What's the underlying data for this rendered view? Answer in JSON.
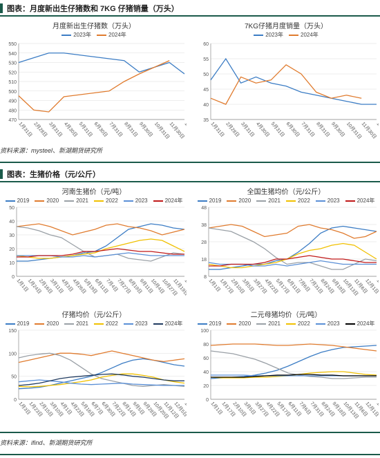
{
  "section1": {
    "title": "图表：月度新出生仔猪数和 7KG 仔猪销量（万头）",
    "source": "资料来源：mysteel、新湖期货研究所",
    "left": {
      "title": "月度新出生仔猪数（万头）",
      "legend": [
        {
          "label": "2023年",
          "color": "#3b7cc4"
        },
        {
          "label": "2024年",
          "color": "#e07b2e"
        }
      ],
      "ylim": [
        470,
        550
      ],
      "ytick_step": 10,
      "x": [
        "1月31日",
        "2月28日",
        "3月31日",
        "4月30日",
        "5月31日",
        "6月30日",
        "7月31日",
        "8月31日",
        "9月30日",
        "10月31日",
        "11月30日",
        "12月31日"
      ],
      "series": {
        "2023": [
          530,
          535,
          540,
          540,
          538,
          536,
          534,
          532,
          520,
          525,
          530,
          518
        ],
        "2024": [
          495,
          480,
          478,
          494,
          496,
          498,
          500,
          510,
          518,
          525,
          532,
          null
        ]
      }
    },
    "right": {
      "title": "7KG仔猪月度销量（万头）",
      "legend": [
        {
          "label": "2023年",
          "color": "#3b7cc4"
        },
        {
          "label": "2024年",
          "color": "#e07b2e"
        }
      ],
      "ylim": [
        35,
        60
      ],
      "ytick_step": 5,
      "x": [
        "1月31日",
        "2月28日",
        "3月31日",
        "4月30日",
        "5月31日",
        "6月30日",
        "7月31日",
        "8月31日",
        "9月30日",
        "10月31日",
        "11月30日",
        "12月31日"
      ],
      "series": {
        "2023": [
          48,
          55,
          47,
          49,
          47,
          46,
          44,
          43,
          42,
          41,
          40,
          40
        ],
        "2024": [
          42,
          40,
          49,
          47,
          48,
          53,
          50,
          44,
          42,
          43,
          42,
          null
        ]
      }
    }
  },
  "section2": {
    "title": "图表：生猪价格（元/公斤）",
    "source": "资料来源：ifind、新湖期货研究所",
    "charts": [
      {
        "title": "河南生猪价（元/吨）",
        "ylim": [
          0,
          50
        ],
        "ytick_step": 10,
        "x": [
          "1月1日",
          "1月24日",
          "2月16日",
          "3月11日",
          "4月3日",
          "4月26日",
          "5月19日",
          "6月11日",
          "7月4日",
          "7月27日",
          "8月19日",
          "9月11日",
          "10月4日",
          "10月27日",
          "11月19日",
          "12月12日"
        ],
        "legend": [
          {
            "label": "2019",
            "color": "#3b7cc4"
          },
          {
            "label": "2020",
            "color": "#e07b2e"
          },
          {
            "label": "2021",
            "color": "#9aa0a6"
          },
          {
            "label": "2022",
            "color": "#f0c000"
          },
          {
            "label": "2023",
            "color": "#5a8fd6"
          },
          {
            "label": "2024年",
            "color": "#c01818"
          }
        ],
        "series": {
          "2019": [
            11,
            11,
            12,
            13,
            14,
            15,
            17,
            18,
            22,
            28,
            34,
            36,
            38,
            37,
            35,
            34
          ],
          "2020": [
            36,
            37,
            38,
            36,
            33,
            30,
            32,
            34,
            37,
            38,
            36,
            35,
            33,
            30,
            32,
            34
          ],
          "2021": [
            36,
            35,
            33,
            30,
            28,
            23,
            18,
            14,
            15,
            16,
            13,
            12,
            11,
            14,
            17,
            16
          ],
          "2022": [
            15,
            14,
            13,
            13,
            14,
            15,
            16,
            17,
            20,
            22,
            24,
            26,
            27,
            26,
            22,
            18
          ],
          "2023": [
            15,
            15,
            15,
            15,
            14,
            14,
            15,
            14,
            15,
            16,
            17,
            16,
            15,
            15,
            15,
            15
          ],
          "2024": [
            14,
            14,
            15,
            15,
            15,
            16,
            18,
            18,
            19,
            20,
            19,
            18,
            18,
            17,
            16,
            16
          ]
        }
      },
      {
        "title": "全国生猪均价（元/公斤）",
        "ylim": [
          8,
          48
        ],
        "ytick_step": 10,
        "x": [
          "1月1日",
          "1月17日",
          "2月10日",
          "3月5日",
          "3月27日",
          "4月22日",
          "5月17日",
          "6月11日",
          "7月6日",
          "7月31日",
          "8月24日",
          "9月18日",
          "10月13日",
          "11月6日",
          "12月1日",
          "12月26日"
        ],
        "legend": [
          {
            "label": "2019",
            "color": "#3b7cc4"
          },
          {
            "label": "2020",
            "color": "#e07b2e"
          },
          {
            "label": "2021",
            "color": "#9aa0a6"
          },
          {
            "label": "2022",
            "color": "#f0c000"
          },
          {
            "label": "2023",
            "color": "#5a8fd6"
          },
          {
            "label": "2024年",
            "color": "#c01818"
          }
        ],
        "series": {
          "2019": [
            12,
            12,
            13,
            14,
            15,
            15,
            17,
            18,
            22,
            27,
            33,
            36,
            37,
            36,
            35,
            34
          ],
          "2020": [
            36,
            37,
            38,
            37,
            34,
            31,
            32,
            33,
            37,
            38,
            36,
            35,
            33,
            30,
            31,
            34
          ],
          "2021": [
            36,
            35,
            34,
            31,
            28,
            24,
            19,
            15,
            16,
            16,
            14,
            12,
            12,
            15,
            18,
            17
          ],
          "2022": [
            15,
            14,
            13,
            13,
            14,
            15,
            16,
            18,
            21,
            23,
            24,
            26,
            27,
            26,
            22,
            18
          ],
          "2023": [
            16,
            15,
            15,
            15,
            14,
            14,
            15,
            14,
            15,
            16,
            17,
            16,
            15,
            15,
            15,
            15
          ],
          "2024": [
            14,
            14,
            15,
            15,
            15,
            16,
            18,
            18,
            19,
            20,
            19,
            18,
            18,
            17,
            16,
            16
          ]
        }
      },
      {
        "title": "仔猪均价（元/公斤）",
        "ylim": [
          0,
          150
        ],
        "ytick_step": 50,
        "x": [
          "1月3日",
          "1月23日",
          "2月15日",
          "3月10日",
          "4月1日",
          "4月23日",
          "5月16日",
          "6月7日",
          "6月30日",
          "7月22日",
          "8月14日",
          "9月5日",
          "9月28日",
          "10月20日",
          "11月12日",
          "12月5日",
          "12月27日"
        ],
        "legend": [
          {
            "label": "2019",
            "color": "#3b7cc4"
          },
          {
            "label": "2020",
            "color": "#e07b2e"
          },
          {
            "label": "2021",
            "color": "#9aa0a6"
          },
          {
            "label": "2022",
            "color": "#f0c000"
          },
          {
            "label": "2023",
            "color": "#5a8fd6"
          },
          {
            "label": "2024年",
            "color": "#1f3a5f"
          }
        ],
        "series": {
          "2019": [
            23,
            24,
            26,
            30,
            35,
            40,
            45,
            50,
            58,
            68,
            78,
            85,
            88,
            85,
            80,
            75,
            72
          ],
          "2020": [
            80,
            85,
            90,
            95,
            100,
            100,
            98,
            95,
            100,
            105,
            100,
            95,
            90,
            85,
            82,
            85,
            88
          ],
          "2021": [
            90,
            95,
            98,
            100,
            95,
            85,
            70,
            55,
            45,
            40,
            35,
            30,
            28,
            30,
            32,
            30,
            28
          ],
          "2022": [
            28,
            27,
            28,
            30,
            32,
            35,
            38,
            42,
            48,
            52,
            55,
            55,
            52,
            48,
            42,
            38,
            35
          ],
          "2023": [
            38,
            40,
            42,
            40,
            38,
            35,
            33,
            32,
            33,
            34,
            35,
            33,
            32,
            31,
            30,
            30,
            30
          ],
          "2024": [
            30,
            32,
            35,
            40,
            45,
            48,
            50,
            52,
            54,
            55,
            53,
            50,
            48,
            45,
            42,
            40,
            40
          ]
        }
      },
      {
        "title": "二元母猪均价（元/吨）",
        "ylim": [
          0,
          100
        ],
        "ytick_step": 20,
        "x": [
          "1月1日",
          "1月17日",
          "2月10日",
          "3月5日",
          "3月27日",
          "4月22日",
          "5月17日",
          "6月11日",
          "7月6日",
          "7月31日",
          "8月24日",
          "9月18日",
          "10月13日",
          "11月6日",
          "12月1日",
          "12月27日"
        ],
        "legend": [
          {
            "label": "2019",
            "color": "#3b7cc4"
          },
          {
            "label": "2020",
            "color": "#e07b2e"
          },
          {
            "label": "2021",
            "color": "#9aa0a6"
          },
          {
            "label": "2022",
            "color": "#f0c000"
          },
          {
            "label": "2023",
            "color": "#5a8fd6"
          },
          {
            "label": "2024年",
            "color": "#000000"
          }
        ],
        "series": {
          "2019": [
            30,
            31,
            32,
            33,
            35,
            38,
            42,
            48,
            55,
            62,
            68,
            72,
            75,
            76,
            77,
            78
          ],
          "2020": [
            78,
            79,
            80,
            80,
            80,
            79,
            78,
            78,
            79,
            80,
            79,
            78,
            76,
            74,
            72,
            70
          ],
          "2021": [
            70,
            68,
            66,
            62,
            58,
            52,
            45,
            38,
            35,
            33,
            32,
            30,
            30,
            31,
            32,
            32
          ],
          "2022": [
            32,
            31,
            31,
            31,
            32,
            32,
            33,
            34,
            36,
            38,
            39,
            40,
            40,
            38,
            36,
            35
          ],
          "2023": [
            35,
            35,
            35,
            35,
            34,
            34,
            34,
            34,
            34,
            34,
            34,
            34,
            34,
            34,
            34,
            34
          ],
          "2024": [
            32,
            32,
            32,
            32,
            33,
            34,
            35,
            35,
            36,
            36,
            35,
            35,
            34,
            34,
            34,
            34
          ]
        }
      }
    ]
  },
  "style": {
    "grid_color": "#dddddd",
    "axis_color": "#888888",
    "text_color": "#555555",
    "line_width": 1.3
  }
}
